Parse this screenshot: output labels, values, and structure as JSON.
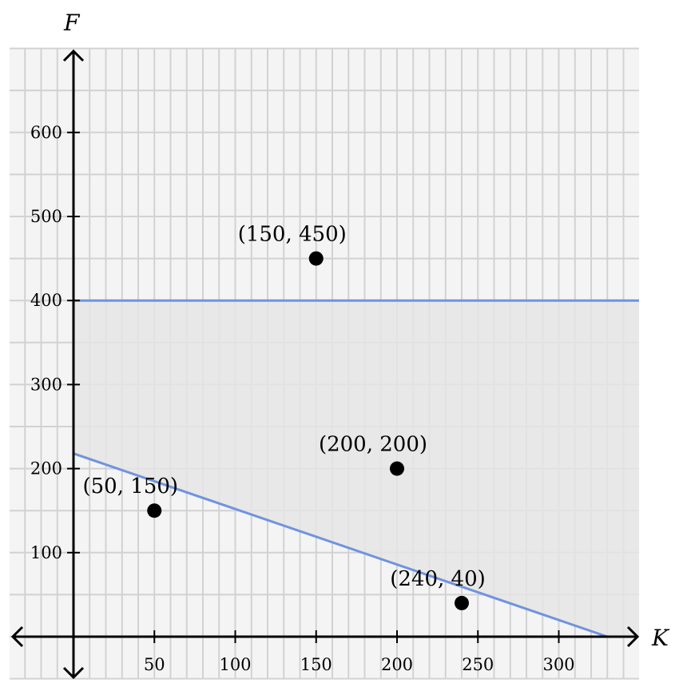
{
  "chart_data": {
    "type": "scatter",
    "title": "",
    "xlabel": "K",
    "ylabel": "F",
    "xlim": [
      -40,
      350
    ],
    "ylim": [
      -50,
      700
    ],
    "x_ticks": [
      50,
      100,
      150,
      200,
      250,
      300
    ],
    "y_ticks": [
      100,
      200,
      300,
      400,
      500,
      600
    ],
    "grid": true,
    "minor_grid_x_step": 10,
    "minor_grid_y_step": 50,
    "points": [
      {
        "x": 150,
        "y": 450,
        "label": "(150, 450)"
      },
      {
        "x": 200,
        "y": 200,
        "label": "(200, 200)"
      },
      {
        "x": 50,
        "y": 150,
        "label": "(50, 150)"
      },
      {
        "x": 240,
        "y": 40,
        "label": "(240, 40)"
      }
    ],
    "lines": [
      {
        "type": "horizontal",
        "y": 400,
        "x_from": 0,
        "x_to": 350
      },
      {
        "type": "segment",
        "from": [
          0,
          218
        ],
        "to": [
          330,
          0
        ]
      }
    ],
    "shaded_region": "between F = 400 and the line from (0, 218) to (330, 0), for K >= 0",
    "colors": {
      "line": "#6f93e0",
      "shade": "#e5e5e5",
      "point": "#000000",
      "grid": "#d2d2d2"
    }
  }
}
